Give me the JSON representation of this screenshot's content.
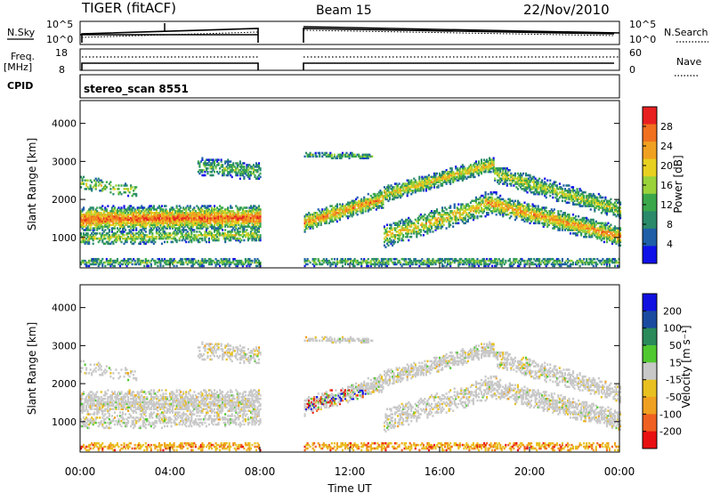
{
  "header": {
    "station": "TIGER (fitACF)",
    "beam": "Beam 15",
    "date": "22/Nov/2010"
  },
  "top_panels": {
    "nsky_label": "N.Sky",
    "nsky_top": "10^5",
    "nsky_bottom": "10^0",
    "nsearch_label": "N.Search",
    "nsearch_top": "10^5",
    "nsearch_bottom": "10^0",
    "freq_label": "Freq.",
    "freq_unit": "[MHz]",
    "freq_top": "18",
    "freq_bottom": "8",
    "nave_label": "Nave",
    "nave_top": "60",
    "nave_bottom": "0",
    "cpid_label": "CPID",
    "cpid_value": "stereo_scan 8551"
  },
  "colors": {
    "power": [
      "#1010e8",
      "#1f5fa8",
      "#2a8a6a",
      "#3aa84a",
      "#9ad23a",
      "#e8d020",
      "#f0a020",
      "#f07020",
      "#e82020"
    ],
    "velocity": {
      "v200": "#1010e0",
      "v100": "#1a4aa0",
      "v50": "#2a8a5a",
      "v15": "#50c830",
      "vmid": "#c8c8c8",
      "vm15": "#e8c020",
      "vm50": "#f0a020",
      "vm100": "#f06020",
      "vm200": "#e81010"
    }
  },
  "chart_data": [
    {
      "type": "heatmap",
      "name": "power",
      "ylabel": "Slant Range [km]",
      "yticks": [
        "1000",
        "2000",
        "3000",
        "4000"
      ],
      "ylim": [
        200,
        4600
      ],
      "xlim": [
        "00:00",
        "24:00"
      ],
      "gap": [
        "08:00",
        "09:50"
      ],
      "colorbar": {
        "label": "Power [dB]",
        "ticks": [
          "4",
          "8",
          "12",
          "16",
          "20",
          "24",
          "28"
        ],
        "range": [
          0,
          32
        ]
      }
    },
    {
      "type": "heatmap",
      "name": "velocity",
      "ylabel": "Slant Range [km]",
      "yticks": [
        "1000",
        "2000",
        "3000",
        "4000"
      ],
      "ylim": [
        200,
        4600
      ],
      "xlim": [
        "00:00",
        "24:00"
      ],
      "xticks": [
        "00:00",
        "04:00",
        "08:00",
        "12:00",
        "16:00",
        "20:00",
        "00:00"
      ],
      "xlabel": "Time UT",
      "colorbar": {
        "label": "Velocity [m s⁻¹]",
        "ticks": [
          "200",
          "100",
          "50",
          "15",
          "-15",
          "-50",
          "-100",
          "-200"
        ]
      }
    }
  ]
}
